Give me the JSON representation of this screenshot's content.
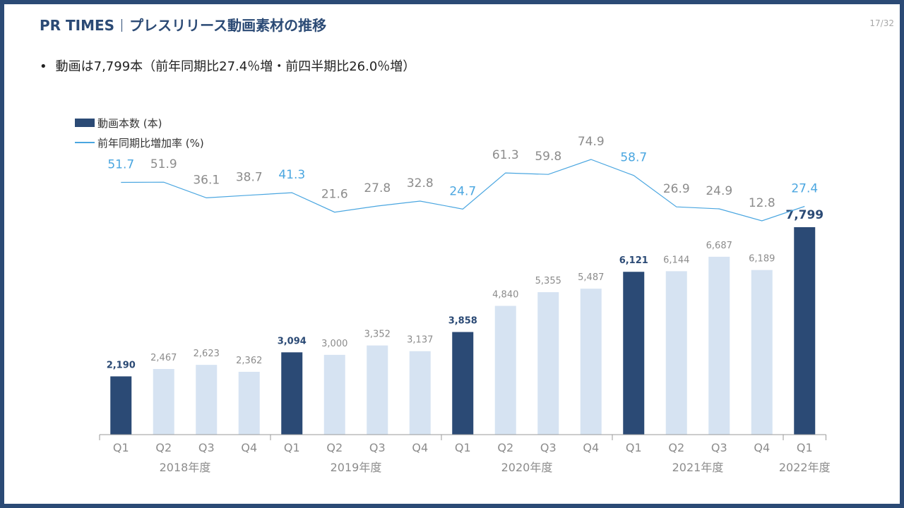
{
  "header": {
    "brand": "PR TIMES",
    "title": "プレスリリース動画素材の推移",
    "page_number": "17/32"
  },
  "bullet": {
    "text": "動画は7,799本（前年同期比27.4％増・前四半期比26.0％増）"
  },
  "legend": {
    "bar_label": "動画本数 (本)",
    "line_label": "前年同期比増加率 (%)"
  },
  "colors": {
    "frame": "#2b4a75",
    "bar_highlight": "#2b4a75",
    "bar_normal": "#d6e3f2",
    "line": "#4aa6e0",
    "label_muted": "#8c8c8c"
  },
  "chart_data": {
    "type": "bar",
    "categories": [
      "Q1",
      "Q2",
      "Q3",
      "Q4",
      "Q1",
      "Q2",
      "Q3",
      "Q4",
      "Q1",
      "Q2",
      "Q3",
      "Q4",
      "Q1",
      "Q2",
      "Q3",
      "Q4",
      "Q1"
    ],
    "groups": [
      "2018年度",
      "2019年度",
      "2020年度",
      "2021年度",
      "2022年度"
    ],
    "series": [
      {
        "name": "動画本数 (本)",
        "type": "bar",
        "values": [
          2190,
          2467,
          2623,
          2362,
          3094,
          3000,
          3352,
          3137,
          3858,
          4840,
          5355,
          5487,
          6121,
          6144,
          6687,
          6189,
          7799
        ],
        "labels": [
          "2,190",
          "2,467",
          "2,623",
          "2,362",
          "3,094",
          "3,000",
          "3,352",
          "3,137",
          "3,858",
          "4,840",
          "5,355",
          "5,487",
          "6,121",
          "6,144",
          "6,687",
          "6,189",
          "7,799"
        ]
      },
      {
        "name": "前年同期比増加率 (%)",
        "type": "line",
        "values": [
          51.7,
          51.9,
          36.1,
          38.7,
          41.3,
          21.6,
          27.8,
          32.8,
          24.7,
          61.3,
          59.8,
          74.9,
          58.7,
          26.9,
          24.9,
          12.8,
          27.4
        ],
        "labels": [
          "51.7",
          "51.9",
          "36.1",
          "38.7",
          "41.3",
          "21.6",
          "27.8",
          "32.8",
          "24.7",
          "61.3",
          "59.8",
          "74.9",
          "58.7",
          "26.9",
          "24.9",
          "12.8",
          "27.4"
        ]
      }
    ],
    "highlight_quarter": "Q1"
  }
}
